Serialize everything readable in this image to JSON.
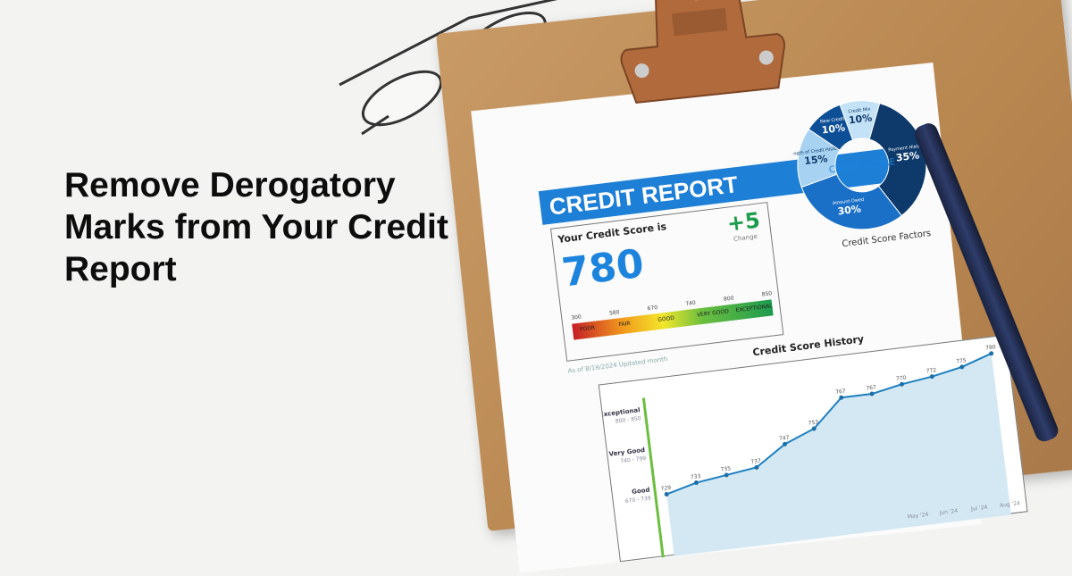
{
  "headline": "Remove Derogatory Marks from Your Credit Report",
  "report": {
    "title": "CREDIT REPORT",
    "score_label": "Your Credit Score is",
    "score": "780",
    "change": "+5",
    "change_label": "Change",
    "as_of": "As of 8/19/2024 Updated month",
    "gauge_ranges": [
      "POOR",
      "FAIR",
      "GOOD",
      "VERY GOOD",
      "EXCEPTIONAL"
    ],
    "gauge_ticks": [
      "300",
      "580",
      "670",
      "740",
      "800",
      "850"
    ]
  },
  "factors": {
    "center": "CREDIT SCORE",
    "caption": "Credit Score Factors",
    "slices": [
      {
        "label": "Payment History",
        "value": "35%",
        "color": "#0d3a6b"
      },
      {
        "label": "Amount Owed",
        "value": "30%",
        "color": "#1a6fc7"
      },
      {
        "label": "Length of Credit History",
        "value": "15%",
        "color": "#a8d2f2"
      },
      {
        "label": "New Credit",
        "value": "10%",
        "color": "#0d4f96"
      },
      {
        "label": "Credit Mix",
        "value": "10%",
        "color": "#c4e2f7"
      }
    ]
  },
  "history": {
    "title": "Credit Score History",
    "bands": [
      {
        "name": "Exceptional",
        "range": "800 - 850"
      },
      {
        "name": "Very Good",
        "range": "740 - 799"
      },
      {
        "name": "Good",
        "range": "670 - 739"
      }
    ],
    "values": [
      729,
      733,
      735,
      737,
      747,
      753,
      767,
      767,
      770,
      772,
      775,
      780
    ],
    "xlabels": [
      "May '24",
      "Jun '24",
      "Jul '24",
      "Aug '24"
    ]
  }
}
